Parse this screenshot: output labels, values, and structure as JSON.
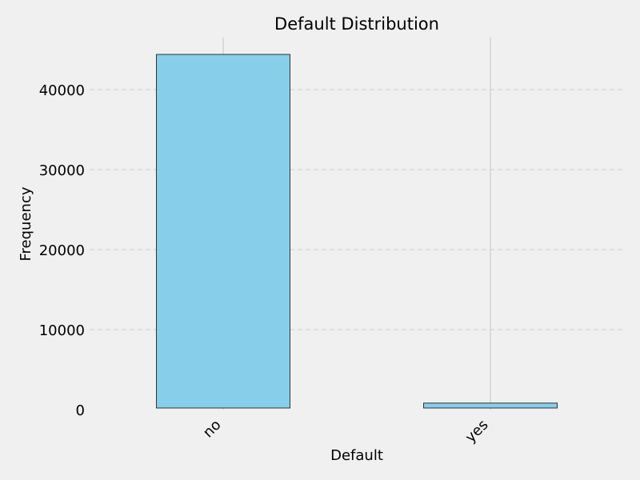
{
  "chart_data": {
    "type": "bar",
    "title": "Default Distribution",
    "xlabel": "Default",
    "ylabel": "Frequency",
    "categories": [
      "no",
      "yes"
    ],
    "values": [
      44396,
      815
    ],
    "ylim": [
      0,
      46600
    ],
    "yticks": [
      0,
      10000,
      20000,
      30000,
      40000
    ],
    "ytick_labels": [
      "0",
      "10000",
      "20000",
      "30000",
      "40000"
    ],
    "grid": {
      "y": true,
      "x": true
    },
    "legend": "none"
  },
  "colors": {
    "background": "#f0f0f0",
    "bar_fill": "#87ceeb",
    "bar_edge": "#333333",
    "grid_y": "#d3d3d3",
    "grid_x": "#cbcbcb"
  }
}
